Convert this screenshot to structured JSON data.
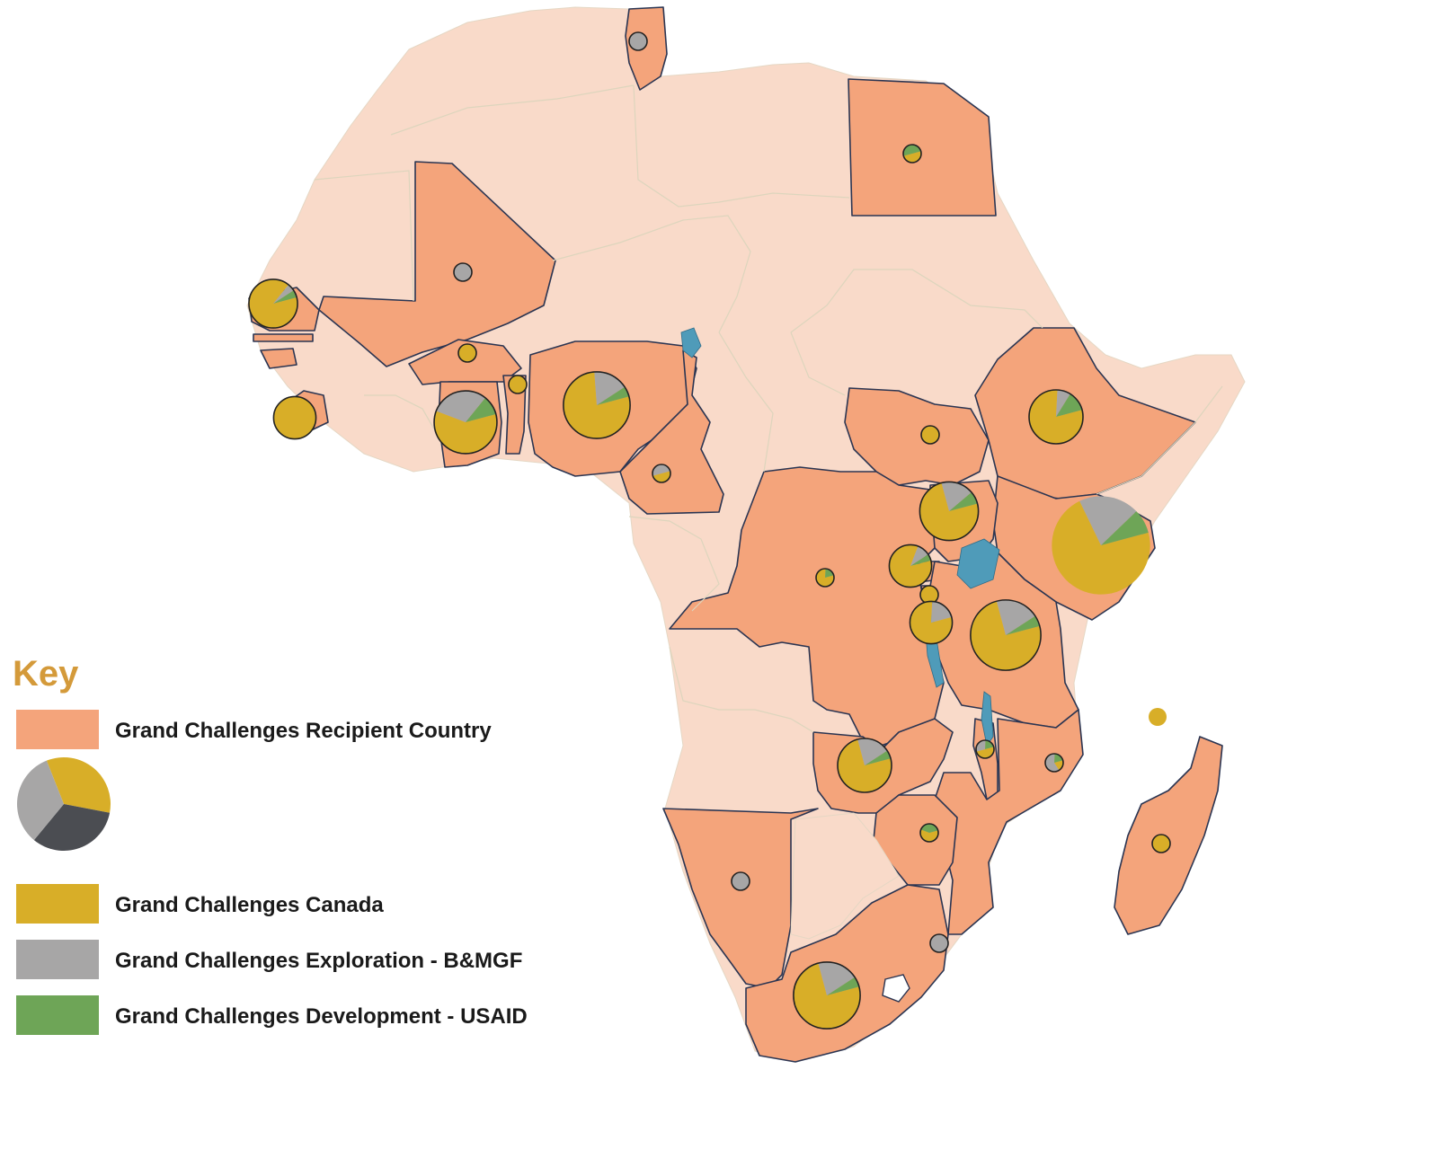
{
  "colors": {
    "background": "#ffffff",
    "non_recipient_land": "#f9dac9",
    "recipient_land": "#f4a47b",
    "border": "#2b3552",
    "water": "#4f9bb9",
    "canada": "#d8ae28",
    "exploration": "#a7a6a6",
    "development": "#6ea557",
    "key_pie_dark": "#4b4d52",
    "key_title": "#d49a3a"
  },
  "legend": {
    "title": "Key",
    "items": [
      {
        "label": "Grand Challenges Recipient Country",
        "color": "#f4a47b"
      },
      {
        "label": "Grand Challenges Canada",
        "color": "#d8ae28"
      },
      {
        "label": "Grand Challenges Exploration - B&MGF",
        "color": "#a7a6a6"
      },
      {
        "label": "Grand Challenges Development - USAID",
        "color": "#6ea557"
      }
    ],
    "example_pie_slices": [
      {
        "share": 0.34,
        "color": "#d8ae28"
      },
      {
        "share": 0.33,
        "color": "#4b4d52"
      },
      {
        "share": 0.33,
        "color": "#a7a6a6"
      }
    ]
  },
  "map": {
    "recipient_countries": [
      "Egypt",
      "Tunisia",
      "Mali",
      "Senegal",
      "Gambia",
      "Guinea-Bissau",
      "Sierra Leone",
      "Ghana",
      "Burkina Faso",
      "Benin",
      "Nigeria",
      "Cameroon",
      "South Sudan",
      "Ethiopia",
      "Kenya",
      "Uganda",
      "Rwanda",
      "Burundi",
      "Tanzania",
      "Democratic Republic of the Congo",
      "Zambia",
      "Malawi",
      "Mozambique",
      "Zimbabwe",
      "Namibia",
      "South Africa",
      "Swaziland",
      "Madagascar",
      "Seychelles"
    ],
    "markers": [
      {
        "country": "Tunisia",
        "size": 1,
        "canada": 0.0,
        "exploration": 1.0,
        "development": 0.0
      },
      {
        "country": "Egypt",
        "size": 1,
        "canada": 0.5,
        "exploration": 0.0,
        "development": 0.5
      },
      {
        "country": "Mali",
        "size": 1,
        "canada": 0.0,
        "exploration": 1.0,
        "development": 0.0
      },
      {
        "country": "Senegal",
        "size": 3,
        "canada": 0.9,
        "exploration": 0.05,
        "development": 0.05
      },
      {
        "country": "Burkina Faso",
        "size": 1,
        "canada": 1.0,
        "exploration": 0.0,
        "development": 0.0
      },
      {
        "country": "Benin",
        "size": 1,
        "canada": 1.0,
        "exploration": 0.0,
        "development": 0.0
      },
      {
        "country": "Sierra Leone",
        "size": 2,
        "canada": 1.0,
        "exploration": 0.0,
        "development": 0.0
      },
      {
        "country": "Ghana",
        "size": 6,
        "canada": 0.6,
        "exploration": 0.3,
        "development": 0.1
      },
      {
        "country": "Nigeria",
        "size": 7,
        "canada": 0.78,
        "exploration": 0.17,
        "development": 0.05
      },
      {
        "country": "Cameroon",
        "size": 1,
        "canada": 0.5,
        "exploration": 0.5,
        "development": 0.0
      },
      {
        "country": "South Sudan",
        "size": 1,
        "canada": 1.0,
        "exploration": 0.0,
        "development": 0.0
      },
      {
        "country": "Ethiopia",
        "size": 4,
        "canada": 0.8,
        "exploration": 0.08,
        "development": 0.12
      },
      {
        "country": "Uganda",
        "size": 5,
        "canada": 0.75,
        "exploration": 0.18,
        "development": 0.07
      },
      {
        "country": "Kenya",
        "size": 18,
        "canada": 0.72,
        "exploration": 0.2,
        "development": 0.08
      },
      {
        "country": "Democratic Republic of the Congo",
        "size": 1,
        "canada": 0.8,
        "exploration": 0.0,
        "development": 0.2
      },
      {
        "country": "Rwanda",
        "size": 2,
        "canada": 0.85,
        "exploration": 0.1,
        "development": 0.05
      },
      {
        "country": "Burundi",
        "size": 1,
        "canada": 1.0,
        "exploration": 0.0,
        "development": 0.0
      },
      {
        "country": "Tanzania",
        "size": 8,
        "canada": 0.75,
        "exploration": 0.2,
        "development": 0.05
      },
      {
        "country": "Tanzania (Lake Tanganyika area)",
        "size": 2,
        "canada": 0.8,
        "exploration": 0.2,
        "development": 0.0
      },
      {
        "country": "Zambia",
        "size": 4,
        "canada": 0.75,
        "exploration": 0.2,
        "development": 0.05
      },
      {
        "country": "Malawi",
        "size": 1,
        "canada": 0.5,
        "exploration": 0.3,
        "development": 0.2
      },
      {
        "country": "Mozambique",
        "size": 1,
        "canada": 0.2,
        "exploration": 0.6,
        "development": 0.2
      },
      {
        "country": "Zimbabwe",
        "size": 1,
        "canada": 0.6,
        "exploration": 0.0,
        "development": 0.4
      },
      {
        "country": "Namibia",
        "size": 1,
        "canada": 0.0,
        "exploration": 1.0,
        "development": 0.0
      },
      {
        "country": "Swaziland",
        "size": 1,
        "canada": 0.0,
        "exploration": 1.0,
        "development": 0.0
      },
      {
        "country": "South Africa",
        "size": 7,
        "canada": 0.75,
        "exploration": 0.2,
        "development": 0.05
      },
      {
        "country": "Madagascar",
        "size": 1,
        "canada": 1.0,
        "exploration": 0.0,
        "development": 0.0
      },
      {
        "country": "Seychelles",
        "size": 1,
        "canada": 1.0,
        "exploration": 0.0,
        "development": 0.0
      }
    ]
  }
}
